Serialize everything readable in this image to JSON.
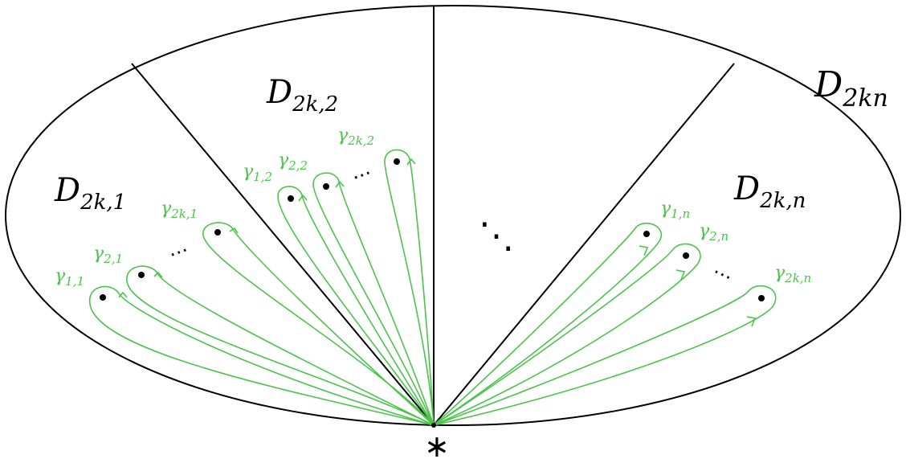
{
  "colors": {
    "loop": "#4cc34c",
    "line": "#000000",
    "background": "#ffffff"
  },
  "regions": [
    {
      "main": "D",
      "sub": "2k,1"
    },
    {
      "main": "D",
      "sub": "2k,2"
    },
    {
      "main": "D",
      "sub": "2k,n"
    },
    {
      "main": "D",
      "sub": "2kn"
    }
  ],
  "loops": {
    "group1": [
      {
        "main": "γ",
        "sub": "1,1"
      },
      {
        "main": "γ",
        "sub": "2,1"
      },
      {
        "main": "γ",
        "sub": "2k,1"
      }
    ],
    "group2": [
      {
        "main": "γ",
        "sub": "1,2"
      },
      {
        "main": "γ",
        "sub": "2,2"
      },
      {
        "main": "γ",
        "sub": "2k,2"
      }
    ],
    "group3": [
      {
        "main": "γ",
        "sub": "1,n"
      },
      {
        "main": "γ",
        "sub": "2,n"
      },
      {
        "main": "γ",
        "sub": "2k,n"
      }
    ]
  },
  "ellipsis": {
    "small": "⋯",
    "big": "⋱"
  },
  "base_point": "∗"
}
